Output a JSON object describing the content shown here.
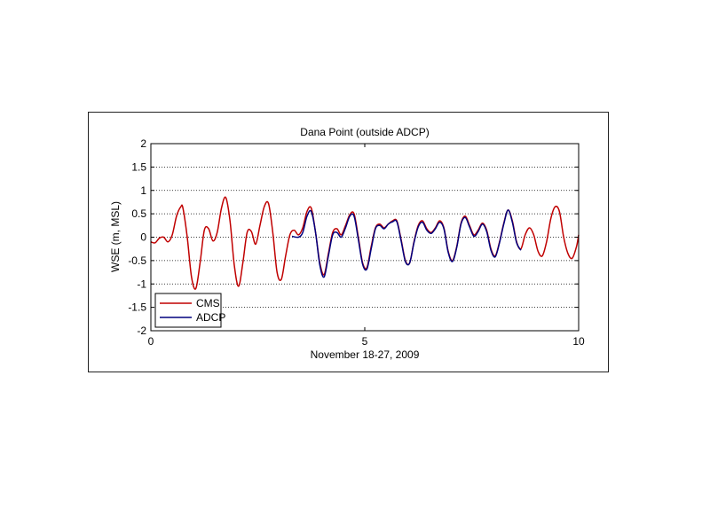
{
  "chart_data": {
    "type": "line",
    "title": "Dana Point (outside ADCP)",
    "xlabel": "November 18-27, 2009",
    "ylabel": "WSE (m, MSL)",
    "xlim": [
      0,
      10
    ],
    "ylim": [
      -2,
      2
    ],
    "xticks": [
      0,
      5,
      10
    ],
    "yticks": [
      2,
      1.5,
      1,
      0.5,
      0,
      -0.5,
      -1,
      -1.5,
      -2
    ],
    "ytick_labels": [
      "2",
      "1.5",
      "1",
      "0.5",
      "0",
      "-0.5",
      "-1",
      "-1.5",
      "-2"
    ],
    "xtick_labels": [
      "0",
      "5",
      "10"
    ],
    "grid": "horizontal dotted",
    "legend_position": "bottom-left",
    "series": [
      {
        "name": "CMS",
        "color": "#c00000",
        "x": [
          0,
          0.1,
          0.2,
          0.3,
          0.4,
          0.5,
          0.6,
          0.7,
          0.75,
          0.85,
          0.95,
          1.05,
          1.15,
          1.25,
          1.35,
          1.45,
          1.55,
          1.65,
          1.75,
          1.85,
          1.95,
          2.05,
          2.15,
          2.25,
          2.35,
          2.45,
          2.55,
          2.65,
          2.75,
          2.85,
          2.95,
          3.05,
          3.15,
          3.25,
          3.35,
          3.45,
          3.55,
          3.65,
          3.75,
          3.85,
          3.95,
          4.05,
          4.15,
          4.25,
          4.35,
          4.45,
          4.55,
          4.65,
          4.75,
          4.85,
          4.95,
          5.05,
          5.15,
          5.25,
          5.35,
          5.45,
          5.55,
          5.65,
          5.75,
          5.85,
          5.95,
          6.05,
          6.15,
          6.25,
          6.35,
          6.45,
          6.55,
          6.65,
          6.75,
          6.85,
          6.95,
          7.05,
          7.15,
          7.25,
          7.35,
          7.45,
          7.55,
          7.65,
          7.75,
          7.85,
          7.95,
          8.05,
          8.15,
          8.25,
          8.35,
          8.45,
          8.55,
          8.65,
          8.75,
          8.85,
          8.95,
          9.05,
          9.15,
          9.25,
          9.35,
          9.45,
          9.55,
          9.65,
          9.75,
          9.85,
          9.95,
          10
        ],
        "y": [
          -0.1,
          -0.12,
          -0.02,
          0.0,
          -0.1,
          0.05,
          0.45,
          0.65,
          0.62,
          0.0,
          -0.85,
          -1.1,
          -0.55,
          0.15,
          0.18,
          -0.08,
          0.1,
          0.62,
          0.85,
          0.35,
          -0.6,
          -1.05,
          -0.55,
          0.1,
          0.12,
          -0.15,
          0.25,
          0.65,
          0.72,
          0.1,
          -0.75,
          -0.9,
          -0.4,
          0.05,
          0.15,
          0.05,
          0.2,
          0.55,
          0.62,
          0.1,
          -0.55,
          -0.8,
          -0.35,
          0.1,
          0.18,
          0.05,
          0.25,
          0.48,
          0.5,
          0.0,
          -0.55,
          -0.65,
          -0.2,
          0.2,
          0.28,
          0.2,
          0.28,
          0.35,
          0.35,
          -0.05,
          -0.5,
          -0.55,
          -0.1,
          0.25,
          0.35,
          0.18,
          0.1,
          0.2,
          0.35,
          0.2,
          -0.3,
          -0.5,
          -0.2,
          0.3,
          0.45,
          0.25,
          0.05,
          0.15,
          0.3,
          0.15,
          -0.25,
          -0.4,
          -0.1,
          0.3,
          0.58,
          0.35,
          -0.1,
          -0.25,
          0.05,
          0.2,
          0.05,
          -0.3,
          -0.4,
          -0.1,
          0.4,
          0.65,
          0.55,
          0.0,
          -0.35,
          -0.45,
          -0.2,
          0.05
        ]
      },
      {
        "name": "ADCP",
        "color": "#00007f",
        "x": [
          3.3,
          3.45,
          3.55,
          3.65,
          3.75,
          3.85,
          3.95,
          4.05,
          4.15,
          4.25,
          4.35,
          4.45,
          4.55,
          4.65,
          4.75,
          4.85,
          4.95,
          5.05,
          5.15,
          5.25,
          5.35,
          5.45,
          5.55,
          5.65,
          5.75,
          5.85,
          5.95,
          6.05,
          6.15,
          6.25,
          6.35,
          6.45,
          6.55,
          6.65,
          6.75,
          6.85,
          6.95,
          7.05,
          7.15,
          7.25,
          7.35,
          7.45,
          7.55,
          7.65,
          7.75,
          7.85,
          7.95,
          8.05,
          8.15,
          8.25,
          8.35,
          8.45,
          8.55,
          8.65
        ],
        "y": [
          0.02,
          0.0,
          0.1,
          0.45,
          0.55,
          0.1,
          -0.6,
          -0.85,
          -0.4,
          0.05,
          0.1,
          0.0,
          0.2,
          0.45,
          0.45,
          -0.05,
          -0.58,
          -0.68,
          -0.25,
          0.18,
          0.25,
          0.18,
          0.28,
          0.33,
          0.33,
          -0.08,
          -0.52,
          -0.55,
          -0.12,
          0.22,
          0.32,
          0.15,
          0.08,
          0.18,
          0.32,
          0.18,
          -0.32,
          -0.52,
          -0.22,
          0.28,
          0.42,
          0.22,
          0.02,
          0.12,
          0.28,
          0.12,
          -0.28,
          -0.42,
          -0.12,
          0.28,
          0.58,
          0.32,
          -0.12,
          -0.28
        ]
      }
    ]
  }
}
